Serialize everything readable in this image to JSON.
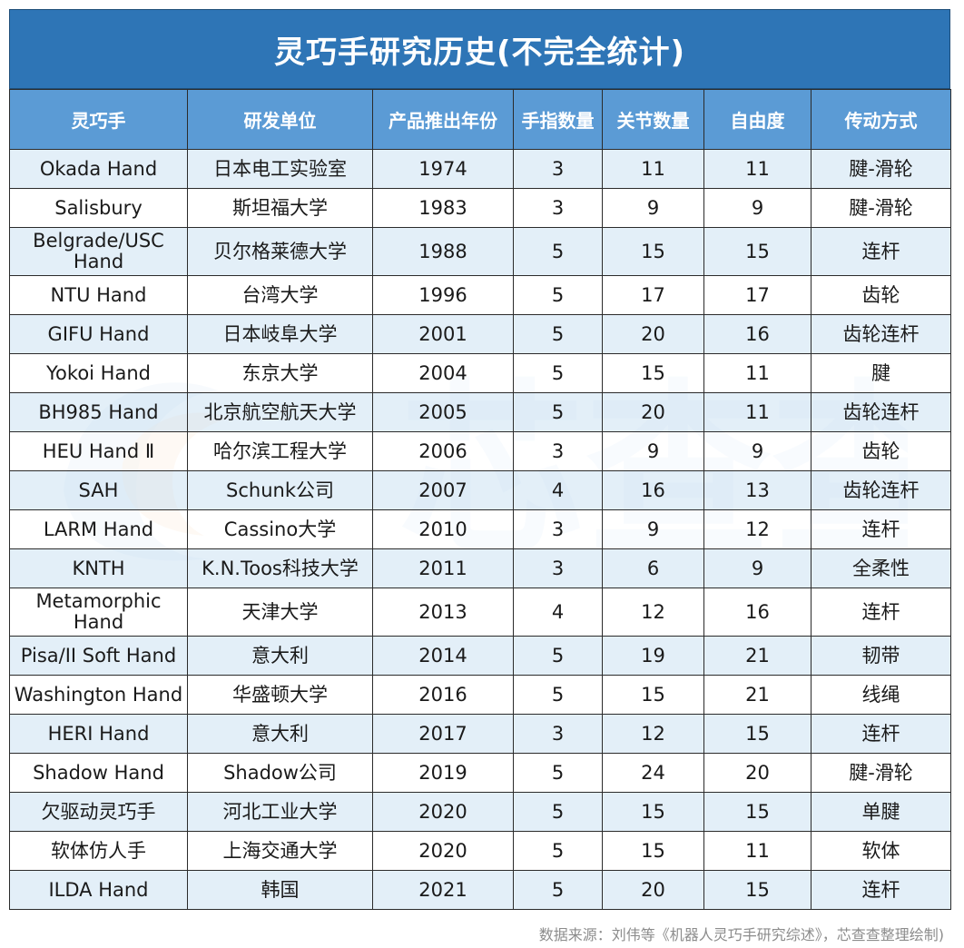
{
  "title": "灵巧手研究历史(不完全统计)",
  "headers": [
    "灵巧手",
    "研发单位",
    "产品推出年份",
    "手指数量",
    "关节数量",
    "自由度",
    "传动方式"
  ],
  "rows": [
    {
      "name": "Okada Hand",
      "org": "日本电工实验室",
      "year": "1974",
      "fingers": "3",
      "joints": "11",
      "dof": "11",
      "drive": "腱-滑轮"
    },
    {
      "name": "Salisbury",
      "org": "斯坦福大学",
      "year": "1983",
      "fingers": "3",
      "joints": "9",
      "dof": "9",
      "drive": "腱-滑轮"
    },
    {
      "name": "Belgrade/USC Hand",
      "org": "贝尔格莱德大学",
      "year": "1988",
      "fingers": "5",
      "joints": "15",
      "dof": "15",
      "drive": "连杆"
    },
    {
      "name": "NTU Hand",
      "org": "台湾大学",
      "year": "1996",
      "fingers": "5",
      "joints": "17",
      "dof": "17",
      "drive": "齿轮"
    },
    {
      "name": "GIFU Hand",
      "org": "日本岐阜大学",
      "year": "2001",
      "fingers": "5",
      "joints": "20",
      "dof": "16",
      "drive": "齿轮连杆"
    },
    {
      "name": "Yokoi Hand",
      "org": "东京大学",
      "year": "2004",
      "fingers": "5",
      "joints": "15",
      "dof": "11",
      "drive": "腱"
    },
    {
      "name": "BH985 Hand",
      "org": "北京航空航天大学",
      "year": "2005",
      "fingers": "5",
      "joints": "20",
      "dof": "11",
      "drive": "齿轮连杆"
    },
    {
      "name": "HEU Hand Ⅱ",
      "org": "哈尔滨工程大学",
      "year": "2006",
      "fingers": "3",
      "joints": "9",
      "dof": "9",
      "drive": "齿轮"
    },
    {
      "name": "SAH",
      "org": "Schunk公司",
      "year": "2007",
      "fingers": "4",
      "joints": "16",
      "dof": "13",
      "drive": "齿轮连杆"
    },
    {
      "name": "LARM Hand",
      "org": "Cassino大学",
      "year": "2010",
      "fingers": "3",
      "joints": "9",
      "dof": "12",
      "drive": "连杆"
    },
    {
      "name": "KNTH",
      "org": "K.N.Toos科技大学",
      "year": "2011",
      "fingers": "3",
      "joints": "6",
      "dof": "9",
      "drive": "全柔性"
    },
    {
      "name": "Metamorphic Hand",
      "org": "天津大学",
      "year": "2013",
      "fingers": "4",
      "joints": "12",
      "dof": "16",
      "drive": "连杆"
    },
    {
      "name": "Pisa/II Soft Hand",
      "org": "意大利",
      "year": "2014",
      "fingers": "5",
      "joints": "19",
      "dof": "21",
      "drive": "韧带"
    },
    {
      "name": "Washington Hand",
      "org": "华盛顿大学",
      "year": "2016",
      "fingers": "5",
      "joints": "15",
      "dof": "21",
      "drive": "线绳"
    },
    {
      "name": "HERI Hand",
      "org": "意大利",
      "year": "2017",
      "fingers": "3",
      "joints": "12",
      "dof": "15",
      "drive": "连杆"
    },
    {
      "name": "Shadow Hand",
      "org": "Shadow公司",
      "year": "2019",
      "fingers": "5",
      "joints": "24",
      "dof": "20",
      "drive": "腱-滑轮"
    },
    {
      "name": "欠驱动灵巧手",
      "org": "河北工业大学",
      "year": "2020",
      "fingers": "5",
      "joints": "15",
      "dof": "15",
      "drive": "单腱"
    },
    {
      "name": "软体仿人手",
      "org": "上海交通大学",
      "year": "2020",
      "fingers": "5",
      "joints": "15",
      "dof": "11",
      "drive": "软体"
    },
    {
      "name": "ILDA Hand",
      "org": "韩国",
      "year": "2021",
      "fingers": "5",
      "joints": "20",
      "dof": "15",
      "drive": "连杆"
    }
  ],
  "watermark": "芯查查",
  "source_note": "数据来源：刘伟等《机器人灵巧手研究综述》，芯查查整理绘制)",
  "colors": {
    "title_bg": "#2e75b6",
    "header_bg": "#5b9bd5",
    "row_alt": "#ddebf7",
    "watermark": "#c9dcf3"
  }
}
